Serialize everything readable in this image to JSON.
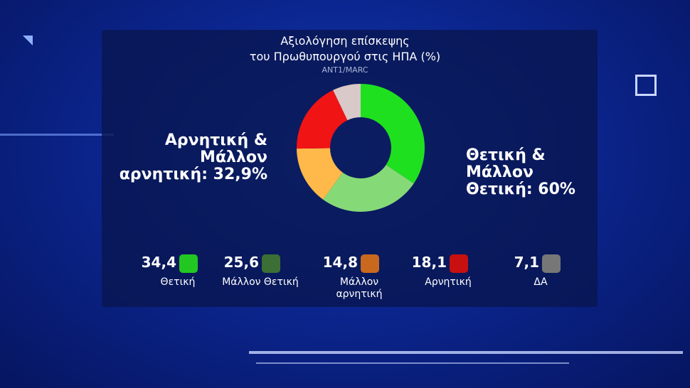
{
  "chart_data": {
    "type": "donut",
    "title": [
      "Αξιολόγηση επίσκεψης",
      "του Πρωθυπουργού στις ΗΠΑ (%)"
    ],
    "subtitle": "ANT1/MARC",
    "categories": [
      "Θετική",
      "Μάλλον Θετική",
      "Μάλλον αρνητική",
      "Αρνητική",
      "ΔΑ"
    ],
    "values": [
      34.4,
      25.6,
      14.8,
      18.1,
      7.1
    ],
    "value_labels": [
      "34,4",
      "25,6",
      "14,8",
      "18,1",
      "7,1"
    ],
    "colors": [
      "#1fe01f",
      "#86d977",
      "#ffb84a",
      "#f01414",
      "#d9c9c9"
    ],
    "legend_colors": [
      "#22c722",
      "#3c6f35",
      "#c9691f",
      "#c81010",
      "#777777"
    ],
    "annotations": [
      {
        "lines": [
          "Αρνητική &",
          "Μάλλον",
          "αρνητική: 32,9%"
        ],
        "side": "left"
      },
      {
        "lines": [
          "Θετική &",
          "Μάλλον",
          "Θετική: 60%"
        ],
        "side": "right"
      }
    ]
  }
}
